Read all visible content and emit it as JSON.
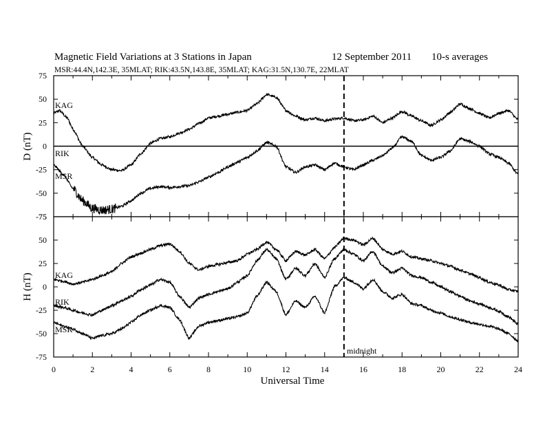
{
  "chart_data": {
    "type": "line",
    "title": "Magnetic Field Variations at 3 Stations in Japan",
    "date": "12 September 2011",
    "averaging": "10-s averages",
    "subtitle": "MSR:44.4N,142.3E, 35MLAT;   RIK:43.5N,143.8E, 35MLAT;   KAG:31.5N,130.7E, 22MLAT",
    "xlabel": "Universal Time",
    "xlim": [
      0,
      24
    ],
    "xticks": [
      "0",
      "2",
      "4",
      "6",
      "8",
      "10",
      "12",
      "14",
      "16",
      "18",
      "20",
      "22",
      "24"
    ],
    "vline": {
      "x": 15,
      "label": "midnight"
    },
    "panels": [
      {
        "ylabel": "D (nT)",
        "ylim": [
          -75,
          75
        ],
        "yticks": [
          "75",
          "50",
          "25",
          "0",
          "-25",
          "-50",
          "-75"
        ],
        "zero_line": true,
        "series": [
          {
            "name": "KAG",
            "x": [
              0,
              0.3,
              0.7,
              1,
              1.5,
              2,
              2.5,
              3,
              3.5,
              4,
              4.5,
              5,
              5.5,
              6,
              6.5,
              7,
              7.5,
              8,
              8.5,
              9,
              9.5,
              10,
              10.5,
              11,
              11.5,
              12,
              12.5,
              13,
              13.5,
              14,
              14.5,
              15,
              15.5,
              16,
              16.5,
              17,
              17.5,
              18,
              18.5,
              19,
              19.5,
              20,
              20.5,
              21,
              21.5,
              22,
              22.5,
              23,
              23.5,
              24
            ],
            "values": [
              35,
              38,
              30,
              18,
              0,
              -12,
              -20,
              -25,
              -26,
              -20,
              -8,
              3,
              8,
              10,
              14,
              18,
              24,
              30,
              32,
              34,
              36,
              38,
              45,
              55,
              52,
              38,
              32,
              28,
              30,
              27,
              29,
              30,
              27,
              28,
              32,
              25,
              30,
              37,
              32,
              27,
              22,
              28,
              36,
              45,
              40,
              35,
              30,
              35,
              38,
              28
            ]
          },
          {
            "name": "RIK",
            "x": [
              0,
              0.5,
              1,
              1.5,
              2,
              2.5,
              3,
              3.5,
              4,
              4.5,
              5,
              5.5,
              6,
              6.5,
              7,
              7.5,
              8,
              8.5,
              9,
              9.5,
              10,
              10.5,
              11,
              11.5,
              12,
              12.5,
              13,
              13.5,
              14,
              14.5,
              15,
              15.5,
              16,
              16.5,
              17,
              17.5,
              18,
              18.5,
              19,
              19.5,
              20,
              20.5,
              21,
              21.5,
              22,
              22.5,
              23,
              23.5,
              24
            ],
            "values": [
              -20,
              -30,
              -45,
              -58,
              -66,
              -68,
              -67,
              -64,
              -58,
              -50,
              -45,
              -43,
              -44,
              -43,
              -42,
              -38,
              -33,
              -28,
              -22,
              -17,
              -12,
              -5,
              4,
              0,
              -22,
              -28,
              -22,
              -20,
              -25,
              -18,
              -22,
              -25,
              -20,
              -15,
              -10,
              -2,
              10,
              5,
              -10,
              -15,
              -12,
              -5,
              8,
              5,
              0,
              -8,
              -12,
              -18,
              -30
            ]
          }
        ]
      },
      {
        "ylabel": "H (nT)",
        "ylim": [
          -75,
          75
        ],
        "yticks": [
          "75",
          "50",
          "25",
          "0",
          "-25",
          "-50",
          "-75"
        ],
        "zero_line": false,
        "series": [
          {
            "name": "KAG",
            "x": [
              0,
              0.5,
              1,
              1.5,
              2,
              2.5,
              3,
              3.5,
              4,
              4.5,
              5,
              5.5,
              6,
              6.5,
              7,
              7.5,
              8,
              8.5,
              9,
              9.5,
              10,
              10.5,
              11,
              11.5,
              12,
              12.5,
              13,
              13.5,
              14,
              14.5,
              15,
              15.5,
              16,
              16.5,
              17,
              17.5,
              18,
              18.5,
              19,
              19.5,
              20,
              20.5,
              21,
              21.5,
              22,
              22.5,
              23,
              23.5,
              24
            ],
            "values": [
              8,
              6,
              3,
              5,
              8,
              12,
              16,
              25,
              32,
              36,
              40,
              44,
              46,
              38,
              25,
              18,
              22,
              24,
              26,
              28,
              35,
              40,
              48,
              40,
              28,
              38,
              34,
              40,
              30,
              42,
              52,
              50,
              45,
              52,
              40,
              35,
              38,
              32,
              30,
              28,
              25,
              22,
              18,
              14,
              10,
              5,
              2,
              -3,
              -5
            ]
          },
          {
            "name": "RIK",
            "x": [
              0,
              0.5,
              1,
              1.5,
              2,
              2.5,
              3,
              3.5,
              4,
              4.5,
              5,
              5.5,
              6,
              6.5,
              7,
              7.5,
              8,
              8.5,
              9,
              9.5,
              10,
              10.5,
              11,
              11.5,
              12,
              12.5,
              13,
              13.5,
              14,
              14.5,
              15,
              15.5,
              16,
              16.5,
              17,
              17.5,
              18,
              18.5,
              19,
              19.5,
              20,
              20.5,
              21,
              21.5,
              22,
              22.5,
              23,
              23.5,
              24
            ],
            "values": [
              -20,
              -22,
              -25,
              -28,
              -30,
              -25,
              -20,
              -15,
              -10,
              -3,
              2,
              8,
              5,
              -10,
              -22,
              -12,
              -8,
              -5,
              -2,
              5,
              12,
              28,
              40,
              30,
              8,
              20,
              12,
              25,
              10,
              30,
              40,
              35,
              28,
              38,
              22,
              15,
              20,
              12,
              10,
              5,
              0,
              -5,
              -10,
              -15,
              -18,
              -22,
              -26,
              -32,
              -40
            ]
          },
          {
            "name": "MSR",
            "x": [
              0,
              0.5,
              1,
              1.5,
              2,
              2.5,
              3,
              3.5,
              4,
              4.5,
              5,
              5.5,
              6,
              6.5,
              7,
              7.5,
              8,
              8.5,
              9,
              9.5,
              10,
              10.5,
              11,
              11.5,
              12,
              12.5,
              13,
              13.5,
              14,
              14.5,
              15,
              15.5,
              16,
              16.5,
              17,
              17.5,
              18,
              18.5,
              19,
              19.5,
              20,
              20.5,
              21,
              21.5,
              22,
              22.5,
              23,
              23.5,
              24
            ],
            "values": [
              -38,
              -42,
              -45,
              -50,
              -55,
              -52,
              -50,
              -45,
              -38,
              -30,
              -25,
              -20,
              -22,
              -35,
              -55,
              -42,
              -38,
              -36,
              -34,
              -32,
              -28,
              -10,
              5,
              -5,
              -30,
              -15,
              -22,
              -10,
              -28,
              0,
              10,
              5,
              -2,
              8,
              -5,
              -12,
              -8,
              -18,
              -20,
              -25,
              -28,
              -32,
              -35,
              -38,
              -40,
              -42,
              -45,
              -50,
              -58
            ]
          }
        ]
      }
    ]
  },
  "labels": {
    "d_panel": {
      "kag": "KAG",
      "rik": "RIK",
      "msr": "MSR"
    },
    "h_panel": {
      "kag": "KAG",
      "rik": "RIK",
      "msr": "MSR"
    }
  }
}
